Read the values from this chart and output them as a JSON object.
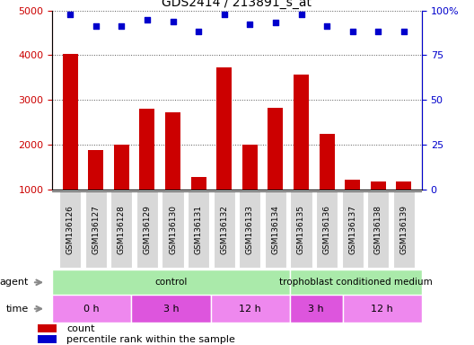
{
  "title": "GDS2414 / 213891_s_at",
  "samples": [
    "GSM136126",
    "GSM136127",
    "GSM136128",
    "GSM136129",
    "GSM136130",
    "GSM136131",
    "GSM136132",
    "GSM136133",
    "GSM136134",
    "GSM136135",
    "GSM136136",
    "GSM136137",
    "GSM136138",
    "GSM136139"
  ],
  "counts": [
    4020,
    1890,
    2000,
    2810,
    2720,
    1290,
    3720,
    2010,
    2820,
    3560,
    2240,
    1220,
    1180,
    1185
  ],
  "percentile_ranks": [
    98,
    91,
    91,
    95,
    94,
    88,
    98,
    92,
    93,
    98,
    91,
    88,
    88,
    88
  ],
  "bar_color": "#cc0000",
  "dot_color": "#0000cc",
  "ylim_left": [
    1000,
    5000
  ],
  "ylim_right": [
    0,
    100
  ],
  "yticks_left": [
    1000,
    2000,
    3000,
    4000,
    5000
  ],
  "yticks_right": [
    0,
    25,
    50,
    75,
    100
  ],
  "agent_groups": [
    {
      "label": "control",
      "start": 0,
      "end": 9,
      "color": "#aaeaaa"
    },
    {
      "label": "trophoblast conditioned medium",
      "start": 9,
      "end": 14,
      "color": "#aaeaaa"
    }
  ],
  "time_groups": [
    {
      "label": "0 h",
      "start": 0,
      "end": 3,
      "color": "#ee88ee"
    },
    {
      "label": "3 h",
      "start": 3,
      "end": 6,
      "color": "#dd55dd"
    },
    {
      "label": "12 h",
      "start": 6,
      "end": 9,
      "color": "#ee88ee"
    },
    {
      "label": "3 h",
      "start": 9,
      "end": 11,
      "color": "#dd55dd"
    },
    {
      "label": "12 h",
      "start": 11,
      "end": 14,
      "color": "#ee88ee"
    }
  ],
  "bg_color": "#ffffff",
  "xticklabel_fontsize": 6.5,
  "yticklabel_fontsize": 8,
  "title_fontsize": 10,
  "xtick_bg": "#d8d8d8"
}
